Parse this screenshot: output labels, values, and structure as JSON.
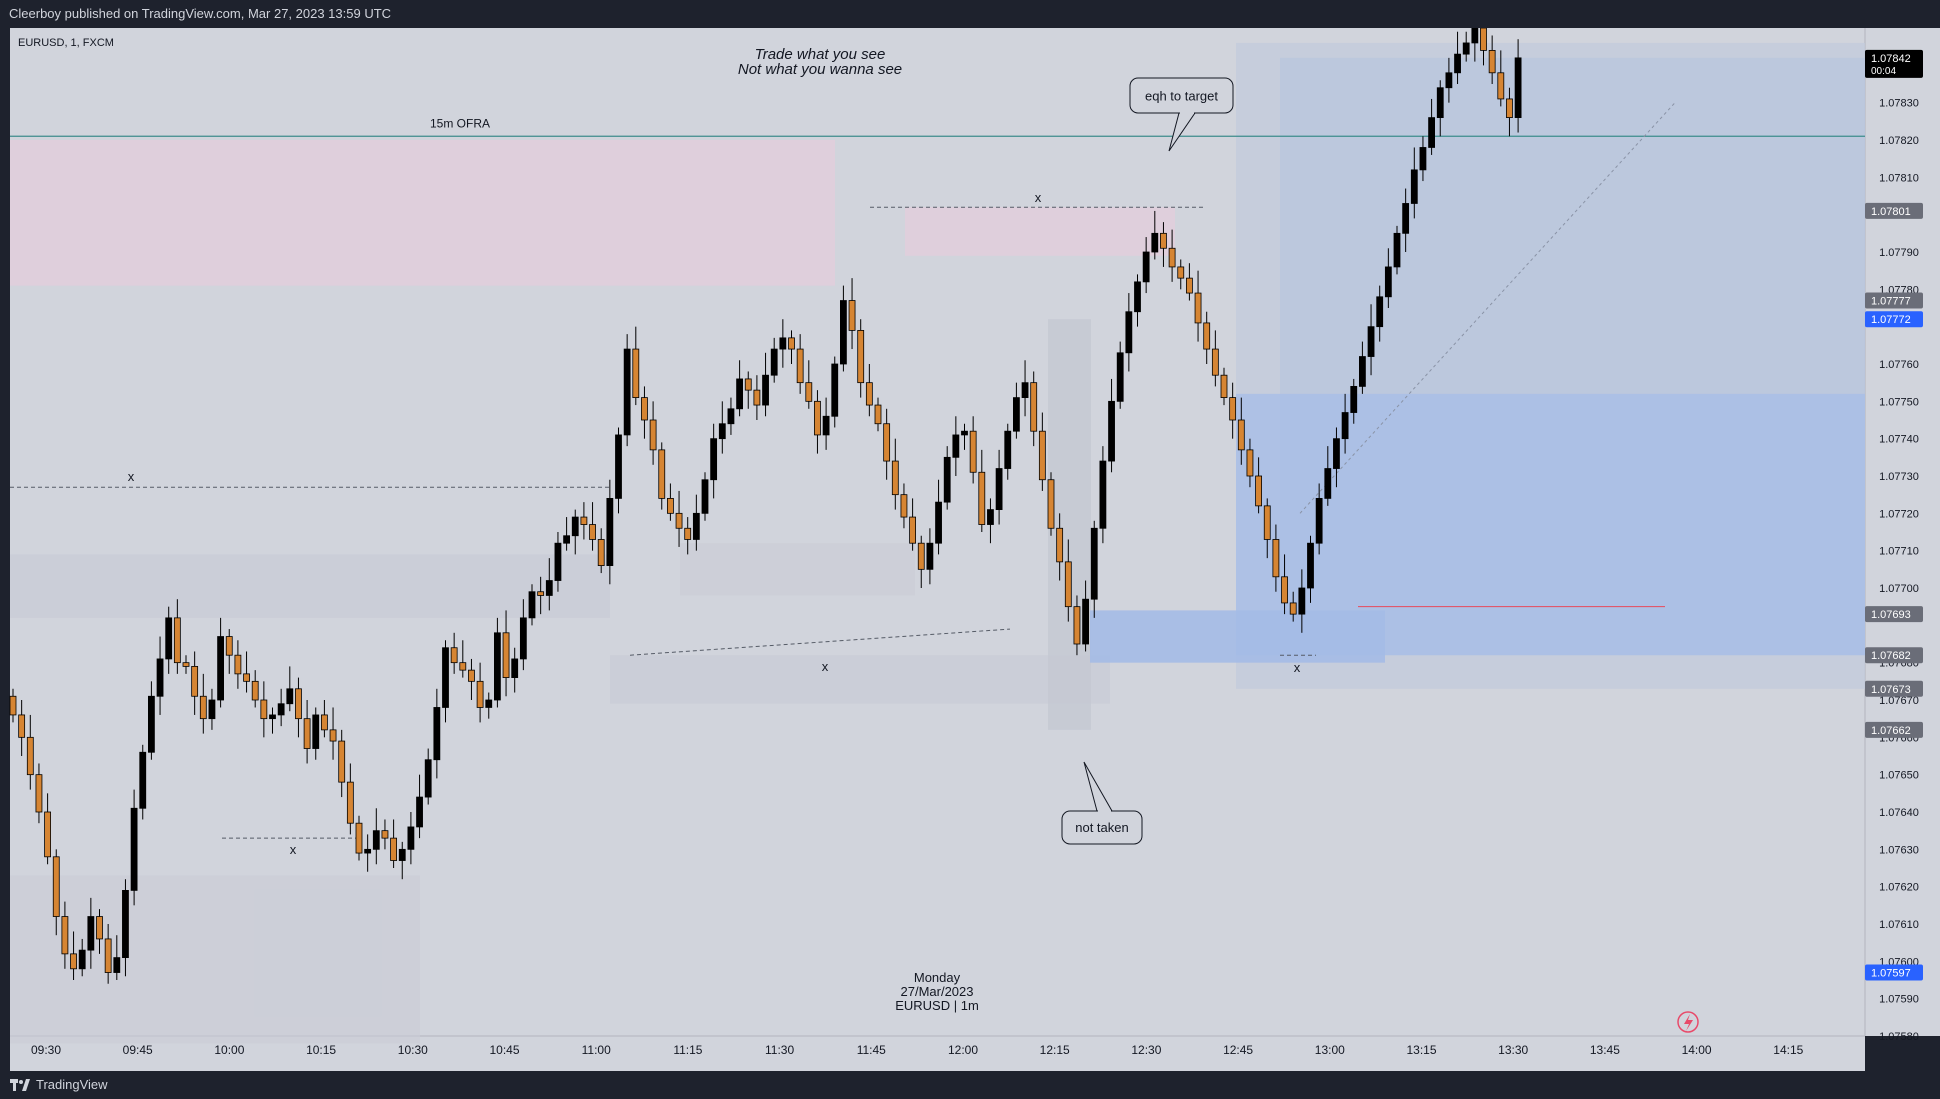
{
  "header": {
    "publish_note": "Cleerboy published on TradingView.com, Mar 27, 2023 13:59 UTC"
  },
  "footer": {
    "brand": "TradingView"
  },
  "symbol_info": "EURUSD, 1, FXCM",
  "quote": {
    "text1": "Trade what you see",
    "text2": "Not what you wanna see"
  },
  "date_note": {
    "day": "Monday",
    "date": "27/Mar/2023",
    "instrument": "EURUSD | 1m"
  },
  "annotations": {
    "ofra": "15m OFRA",
    "eqh_callout": "eqh to target",
    "not_taken_callout": "not taken",
    "marker": "x"
  },
  "colors": {
    "chart_bg": "#d1d4dc",
    "panel_bg": "#1e222d",
    "bull_candle": "#000000",
    "bear_candle": "#d68533",
    "long_zone": "#a9bee6",
    "supply_zone": "#e2cedc",
    "current_price_badge": "#000000",
    "blue_badge": "#2962ff",
    "ofra_line": "#3d8c8c",
    "red_line": "#e8495a"
  },
  "icons": {
    "flash": "flash-icon",
    "logo": "tradingview-logo-icon"
  },
  "chart_data": {
    "type": "candlestick",
    "title": "",
    "xlabel": "",
    "ylabel": "",
    "ylim": [
      1.0758,
      1.0785
    ],
    "y_ticks": [
      "1.07830",
      "1.07820",
      "1.07810",
      "1.07790",
      "1.07780",
      "1.07760",
      "1.07750",
      "1.07740",
      "1.07730",
      "1.07720",
      "1.07710",
      "1.07700",
      "1.07680",
      "1.07670",
      "1.07660",
      "1.07650",
      "1.07640",
      "1.07630",
      "1.07620",
      "1.07610",
      "1.07600",
      "1.07590",
      "1.07580"
    ],
    "x_ticks": [
      "09:30",
      "09:45",
      "10:00",
      "10:15",
      "10:30",
      "10:45",
      "11:00",
      "11:15",
      "11:30",
      "11:45",
      "12:00",
      "12:15",
      "12:30",
      "12:45",
      "13:00",
      "13:15",
      "13:30",
      "13:45",
      "14:00",
      "14:15"
    ],
    "price_labels": [
      {
        "value": "1.07842",
        "sub": "00:04",
        "type": "current"
      },
      {
        "value": "1.07801",
        "type": "gray"
      },
      {
        "value": "1.07777",
        "type": "gray"
      },
      {
        "value": "1.07772",
        "type": "blue"
      },
      {
        "value": "1.07693",
        "type": "gray"
      },
      {
        "value": "1.07682",
        "type": "gray"
      },
      {
        "value": "1.07673",
        "type": "gray"
      },
      {
        "value": "1.07662",
        "type": "gray"
      },
      {
        "value": "1.07597",
        "type": "blue"
      }
    ],
    "closes": [
      1.07666,
      1.0766,
      1.0765,
      1.0764,
      1.07628,
      1.07612,
      1.07602,
      1.07598,
      1.07603,
      1.07612,
      1.07606,
      1.07597,
      1.07601,
      1.07619,
      1.07641,
      1.07656,
      1.07671,
      1.07681,
      1.07692,
      1.0768,
      1.07679,
      1.07671,
      1.07665,
      1.0767,
      1.07687,
      1.07682,
      1.07677,
      1.07675,
      1.0767,
      1.07665,
      1.07666,
      1.07669,
      1.07673,
      1.07665,
      1.07657,
      1.07666,
      1.07662,
      1.07659,
      1.07648,
      1.07637,
      1.07629,
      1.0763,
      1.07635,
      1.07633,
      1.07627,
      1.0763,
      1.07636,
      1.07644,
      1.07654,
      1.07668,
      1.07684,
      1.0768,
      1.07678,
      1.07675,
      1.07668,
      1.0767,
      1.07688,
      1.07676,
      1.07681,
      1.07692,
      1.07699,
      1.07698,
      1.07702,
      1.07712,
      1.07714,
      1.07719,
      1.07717,
      1.07713,
      1.07706,
      1.07724,
      1.07741,
      1.07764,
      1.07751,
      1.07745,
      1.07737,
      1.07724,
      1.0772,
      1.07716,
      1.07713,
      1.0772,
      1.07729,
      1.0774,
      1.07744,
      1.07748,
      1.07756,
      1.07753,
      1.07749,
      1.07757,
      1.07764,
      1.07767,
      1.07764,
      1.07755,
      1.0775,
      1.07741,
      1.07746,
      1.0776,
      1.07777,
      1.07769,
      1.07755,
      1.07749,
      1.07744,
      1.07734,
      1.07725,
      1.07719,
      1.07712,
      1.07705,
      1.07712,
      1.07723,
      1.07735,
      1.07741,
      1.07742,
      1.07731,
      1.07717,
      1.07721,
      1.07732,
      1.07742,
      1.07751,
      1.07755,
      1.07742,
      1.07729,
      1.07716,
      1.07707,
      1.07695,
      1.07685,
      1.07697,
      1.07716,
      1.07734,
      1.0775,
      1.07763,
      1.07774,
      1.07782,
      1.0779,
      1.07795,
      1.07791,
      1.07786,
      1.07783,
      1.07779,
      1.07771,
      1.07764,
      1.07757,
      1.07751,
      1.07745,
      1.07737,
      1.0773,
      1.07722,
      1.07713,
      1.07703,
      1.07696,
      1.07693,
      1.077,
      1.07712,
      1.07724,
      1.07732,
      1.0774,
      1.07747,
      1.07754,
      1.07762,
      1.0777,
      1.07778,
      1.07786,
      1.07795,
      1.07803,
      1.07812,
      1.07818,
      1.07826,
      1.07834,
      1.07838,
      1.07843,
      1.07846,
      1.0785,
      1.07844,
      1.07838,
      1.07831,
      1.07826,
      1.07842
    ]
  }
}
